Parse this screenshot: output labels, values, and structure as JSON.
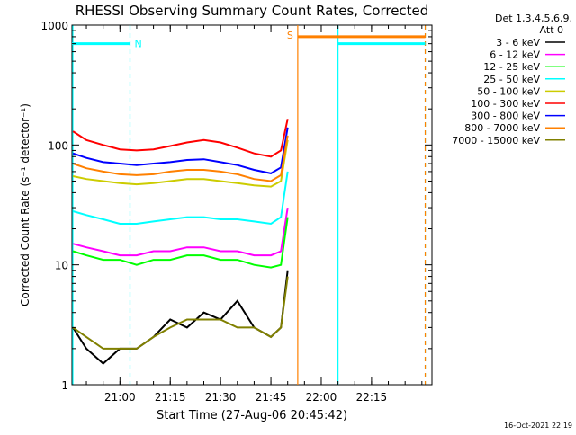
{
  "chart_data": {
    "type": "line",
    "title": "RHESSI Observing Summary Count Rates, Corrected",
    "xlabel": "Start Time (27-Aug-06 20:45:42)",
    "ylabel": "Corrected Count Rate (s⁻¹ detector⁻¹)",
    "y_scale": "log",
    "ylim": [
      1,
      1000
    ],
    "xlim": [
      "20:45:42",
      "22:33"
    ],
    "x_ticks": [
      "21:00",
      "21:15",
      "21:30",
      "21:45",
      "22:00",
      "22:15"
    ],
    "y_ticks": [
      "1",
      "10",
      "100",
      "1000"
    ],
    "grid": false,
    "legend_header": [
      "Det 1,3,4,5,6,9,",
      "Att 0"
    ],
    "legend_position": "top-right",
    "footer_date": "16-Oct-2021 22:19",
    "flags": [
      {
        "label": "N",
        "color": "#00ffff",
        "start": "20:45:42",
        "end": "21:03",
        "level": 700
      },
      {
        "label": "S",
        "color": "#ff8000",
        "start": "21:53",
        "end": "22:31",
        "level": 800
      },
      {
        "label": "",
        "color": "#00ffff",
        "start": "22:05",
        "end": "22:31",
        "level": 700
      }
    ],
    "vertical_markers": [
      {
        "time": "20:45:42",
        "color": "#00ffff",
        "style": "solid"
      },
      {
        "time": "21:03",
        "color": "#00ffff",
        "style": "dashed"
      },
      {
        "time": "21:53",
        "color": "#ff8000",
        "style": "solid"
      },
      {
        "time": "22:05",
        "color": "#00ffff",
        "style": "solid"
      },
      {
        "time": "22:31",
        "color": "#00ffff",
        "style": "dashed"
      },
      {
        "time": "22:31",
        "color": "#ff8000",
        "style": "dashed"
      }
    ],
    "series": [
      {
        "name": "3 - 6 keV",
        "color": "#000000",
        "x": [
          "20:46",
          "20:50",
          "20:55",
          "21:00",
          "21:05",
          "21:10",
          "21:15",
          "21:20",
          "21:25",
          "21:30",
          "21:35",
          "21:40",
          "21:45",
          "21:48",
          "21:50"
        ],
        "values": [
          3,
          2,
          1.5,
          2,
          2,
          2.5,
          3.5,
          3,
          4,
          3.5,
          5,
          3,
          2.5,
          3,
          9
        ]
      },
      {
        "name": "6 - 12 keV",
        "color": "#ff00ff",
        "x": [
          "20:46",
          "20:50",
          "20:55",
          "21:00",
          "21:05",
          "21:10",
          "21:15",
          "21:20",
          "21:25",
          "21:30",
          "21:35",
          "21:40",
          "21:45",
          "21:48",
          "21:50"
        ],
        "values": [
          15,
          14,
          13,
          12,
          12,
          13,
          13,
          14,
          14,
          13,
          13,
          12,
          12,
          13,
          30
        ]
      },
      {
        "name": "12 - 25 keV",
        "color": "#00ff00",
        "x": [
          "20:46",
          "20:50",
          "20:55",
          "21:00",
          "21:05",
          "21:10",
          "21:15",
          "21:20",
          "21:25",
          "21:30",
          "21:35",
          "21:40",
          "21:45",
          "21:48",
          "21:50"
        ],
        "values": [
          13,
          12,
          11,
          11,
          10,
          11,
          11,
          12,
          12,
          11,
          11,
          10,
          9.5,
          10,
          25
        ]
      },
      {
        "name": "25 - 50 keV",
        "color": "#00ffff",
        "x": [
          "20:46",
          "20:50",
          "20:55",
          "21:00",
          "21:05",
          "21:10",
          "21:15",
          "21:20",
          "21:25",
          "21:30",
          "21:35",
          "21:40",
          "21:45",
          "21:48",
          "21:50"
        ],
        "values": [
          28,
          26,
          24,
          22,
          22,
          23,
          24,
          25,
          25,
          24,
          24,
          23,
          22,
          25,
          60
        ]
      },
      {
        "name": "50 - 100 keV",
        "color": "#cccc00",
        "x": [
          "20:46",
          "20:50",
          "20:55",
          "21:00",
          "21:05",
          "21:10",
          "21:15",
          "21:20",
          "21:25",
          "21:30",
          "21:35",
          "21:40",
          "21:45",
          "21:48",
          "21:50"
        ],
        "values": [
          55,
          52,
          50,
          48,
          47,
          48,
          50,
          52,
          52,
          50,
          48,
          46,
          45,
          50,
          110
        ]
      },
      {
        "name": "100 - 300 keV",
        "color": "#ff0000",
        "x": [
          "20:46",
          "20:50",
          "20:55",
          "21:00",
          "21:05",
          "21:10",
          "21:15",
          "21:20",
          "21:25",
          "21:30",
          "21:35",
          "21:40",
          "21:45",
          "21:48",
          "21:50"
        ],
        "values": [
          130,
          110,
          100,
          92,
          90,
          92,
          98,
          105,
          110,
          105,
          95,
          85,
          80,
          90,
          165
        ]
      },
      {
        "name": "300 - 800 keV",
        "color": "#0000ff",
        "x": [
          "20:46",
          "20:50",
          "20:55",
          "21:00",
          "21:05",
          "21:10",
          "21:15",
          "21:20",
          "21:25",
          "21:30",
          "21:35",
          "21:40",
          "21:45",
          "21:48",
          "21:50"
        ],
        "values": [
          85,
          78,
          72,
          70,
          68,
          70,
          72,
          75,
          76,
          72,
          68,
          62,
          58,
          65,
          140
        ]
      },
      {
        "name": "800 - 7000 keV",
        "color": "#ff8000",
        "x": [
          "20:46",
          "20:50",
          "20:55",
          "21:00",
          "21:05",
          "21:10",
          "21:15",
          "21:20",
          "21:25",
          "21:30",
          "21:35",
          "21:40",
          "21:45",
          "21:48",
          "21:50"
        ],
        "values": [
          70,
          64,
          60,
          57,
          56,
          57,
          60,
          62,
          62,
          60,
          57,
          52,
          50,
          56,
          120
        ]
      },
      {
        "name": "7000 - 15000 keV",
        "color": "#808000",
        "x": [
          "20:46",
          "20:50",
          "20:55",
          "21:00",
          "21:05",
          "21:10",
          "21:15",
          "21:20",
          "21:25",
          "21:30",
          "21:35",
          "21:40",
          "21:45",
          "21:48",
          "21:50"
        ],
        "values": [
          3,
          2.5,
          2,
          2,
          2,
          2.5,
          3,
          3.5,
          3.5,
          3.5,
          3,
          3,
          2.5,
          3,
          8
        ]
      }
    ]
  }
}
